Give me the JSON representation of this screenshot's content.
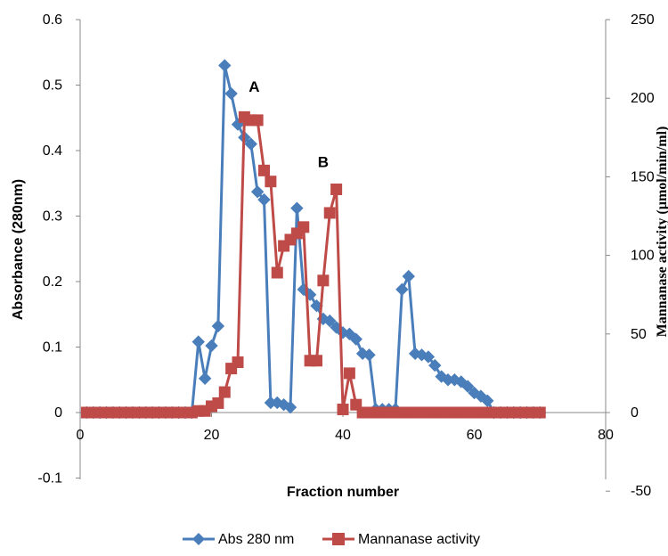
{
  "chart_data": {
    "type": "line",
    "title": "",
    "xlabel": "Fraction number",
    "ylabel": "Absorbance (280nm)",
    "y2label": "Mannanase activity (µmol/min/ml)",
    "xlim": [
      0,
      80
    ],
    "ylim": [
      -0.1,
      0.6
    ],
    "y2lim": [
      -50,
      250
    ],
    "x_ticks": [
      "0",
      "20",
      "40",
      "60",
      "80"
    ],
    "y_ticks": [
      "-0.1",
      "0",
      "0.1",
      "0.2",
      "0.3",
      "0.4",
      "0.5",
      "0.6"
    ],
    "y2_ticks": [
      "-50",
      "0",
      "50",
      "100",
      "150",
      "200",
      "250"
    ],
    "grid": false,
    "legend_position": "bottom",
    "annotations": [
      {
        "text": "A",
        "x": 26.5,
        "y": 0.49
      },
      {
        "text": "B",
        "x": 37,
        "y": 0.375
      }
    ],
    "series": [
      {
        "name": "Abs 280 nm",
        "axis": "left",
        "color": "#4a7ebb",
        "marker": "diamond",
        "x": [
          1,
          2,
          3,
          4,
          5,
          6,
          7,
          8,
          9,
          10,
          11,
          12,
          13,
          14,
          15,
          16,
          17,
          18,
          19,
          20,
          21,
          22,
          23,
          24,
          25,
          26,
          27,
          28,
          29,
          30,
          31,
          32,
          33,
          34,
          35,
          36,
          37,
          38,
          39,
          40,
          41,
          42,
          43,
          44,
          45,
          46,
          47,
          48,
          49,
          50,
          51,
          52,
          53,
          54,
          55,
          56,
          57,
          58,
          59,
          60,
          61,
          62,
          63,
          64,
          65,
          66,
          67,
          68,
          69,
          70
        ],
        "y": [
          0,
          0,
          0,
          0,
          0,
          0,
          0,
          0,
          0,
          0,
          0,
          0,
          0,
          0,
          0,
          0,
          0,
          0.108,
          0.052,
          0.102,
          0.132,
          0.53,
          0.487,
          0.44,
          0.42,
          0.41,
          0.337,
          0.325,
          0.015,
          0.015,
          0.012,
          0.008,
          0.312,
          0.188,
          0.18,
          0.163,
          0.143,
          0.14,
          0.13,
          0.122,
          0.12,
          0.112,
          0.09,
          0.088,
          0.005,
          0.005,
          0.005,
          0.005,
          0.188,
          0.208,
          0.09,
          0.088,
          0.085,
          0.072,
          0.055,
          0.05,
          0.05,
          0.047,
          0.04,
          0.03,
          0.025,
          0.018,
          0,
          0,
          0,
          0,
          0,
          0,
          0,
          0
        ]
      },
      {
        "name": "Mannanase activity",
        "axis": "right",
        "color": "#be4b48",
        "marker": "square",
        "x": [
          1,
          2,
          3,
          4,
          5,
          6,
          7,
          8,
          9,
          10,
          11,
          12,
          13,
          14,
          15,
          16,
          17,
          18,
          19,
          20,
          21,
          22,
          23,
          24,
          25,
          26,
          27,
          28,
          29,
          30,
          31,
          32,
          33,
          34,
          35,
          36,
          37,
          38,
          39,
          40,
          41,
          42,
          43,
          44,
          45,
          46,
          47,
          48,
          49,
          50,
          51,
          52,
          53,
          54,
          55,
          56,
          57,
          58,
          59,
          60,
          61,
          62,
          63,
          64,
          65,
          66,
          67,
          68,
          69,
          70
        ],
        "y": [
          0,
          0,
          0,
          0,
          0,
          0,
          0,
          0,
          0,
          0,
          0,
          0,
          0,
          0,
          0,
          0,
          0,
          1,
          1,
          4,
          6,
          13,
          28,
          32,
          188,
          186,
          186,
          154,
          147,
          89,
          106,
          110,
          114,
          118,
          33,
          33,
          84,
          127,
          142,
          2,
          25,
          5,
          0,
          0,
          0,
          0,
          0,
          0,
          0,
          0,
          0,
          0,
          0,
          0,
          0,
          0,
          0,
          0,
          0,
          0,
          0,
          0,
          0,
          0,
          0,
          0,
          0,
          0,
          0,
          0
        ]
      }
    ]
  }
}
